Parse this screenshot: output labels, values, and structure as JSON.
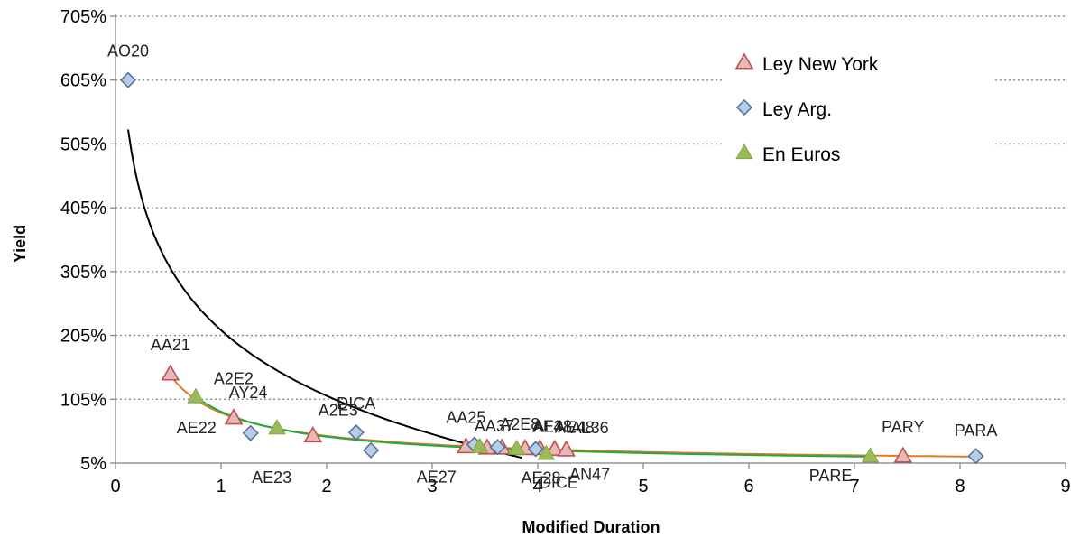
{
  "chart_data": {
    "type": "scatter",
    "title": "",
    "xlabel": "Modified Duration",
    "ylabel": "Yield",
    "xlim": [
      0,
      9
    ],
    "ylim": [
      5,
      705
    ],
    "x_ticks": [
      0,
      1,
      2,
      3,
      4,
      5,
      6,
      7,
      8,
      9
    ],
    "y_ticks": [
      5,
      105,
      205,
      305,
      405,
      505,
      605,
      705
    ],
    "y_tick_labels": [
      "5%",
      "105%",
      "205%",
      "305%",
      "405%",
      "505%",
      "605%",
      "705%"
    ],
    "grid": "horizontal dotted",
    "legend_position": "top-right",
    "series": [
      {
        "name": "Ley New York",
        "marker": "triangle-outline",
        "color": "#c0504d",
        "fill": "#e6b9b8",
        "points": [
          {
            "label": "AA21",
            "x": 0.52,
            "y": 145
          },
          {
            "label": "AY24",
            "x": 1.12,
            "y": 76
          },
          {
            "label": "A2E3",
            "x": 1.87,
            "y": 48
          },
          {
            "label": "AA25",
            "x": 3.32,
            "y": 31
          },
          {
            "label": "AA37",
            "x": 3.52,
            "y": 29
          },
          {
            "label": "A2E8",
            "x": 3.66,
            "y": 29
          },
          {
            "label": "AE38",
            "x": 3.88,
            "y": 28
          },
          {
            "label": "AL41",
            "x": 4.02,
            "y": 28
          },
          {
            "label": "AE48",
            "x": 4.16,
            "y": 27
          },
          {
            "label": "AL36",
            "x": 4.27,
            "y": 26
          },
          {
            "label": "PARY",
            "x": 7.46,
            "y": 16
          }
        ]
      },
      {
        "name": "Ley Arg.",
        "marker": "diamond",
        "color": "#4f6f9f",
        "fill": "#b8cce4",
        "points": [
          {
            "label": "AO20",
            "x": 0.12,
            "y": 605
          },
          {
            "label": "AE22",
            "x": 1.28,
            "y": 52
          },
          {
            "label": "DICA",
            "x": 2.28,
            "y": 53
          },
          {
            "label": "AE23",
            "x": 2.42,
            "y": 25
          },
          {
            "label": "AE27",
            "x": 3.4,
            "y": 34
          },
          {
            "label": "AE28",
            "x": 3.62,
            "y": 30
          },
          {
            "label": "AN47",
            "x": 3.98,
            "y": 27
          },
          {
            "label": "PARA",
            "x": 8.15,
            "y": 16
          }
        ]
      },
      {
        "name": "En Euros",
        "marker": "triangle-filled",
        "color": "#7aa036",
        "fill": "#9bbb59",
        "points": [
          {
            "label": "A2E2",
            "x": 0.76,
            "y": 109
          },
          {
            "label": "",
            "x": 1.53,
            "y": 60
          },
          {
            "label": "",
            "x": 3.45,
            "y": 31
          },
          {
            "label": "",
            "x": 3.8,
            "y": 28
          },
          {
            "label": "DICE",
            "x": 4.08,
            "y": 20
          },
          {
            "label": "PARE",
            "x": 7.15,
            "y": 16
          }
        ]
      }
    ],
    "trendlines": [
      {
        "color": "#000000",
        "x_range": [
          0.12,
          3.85
        ]
      },
      {
        "color": "#e07b22",
        "x_range": [
          0.52,
          8.15
        ]
      },
      {
        "color": "#21a945",
        "x_range": [
          0.76,
          7.15
        ]
      }
    ]
  },
  "colors": {
    "grid": "#808080",
    "axis": "#808080"
  }
}
